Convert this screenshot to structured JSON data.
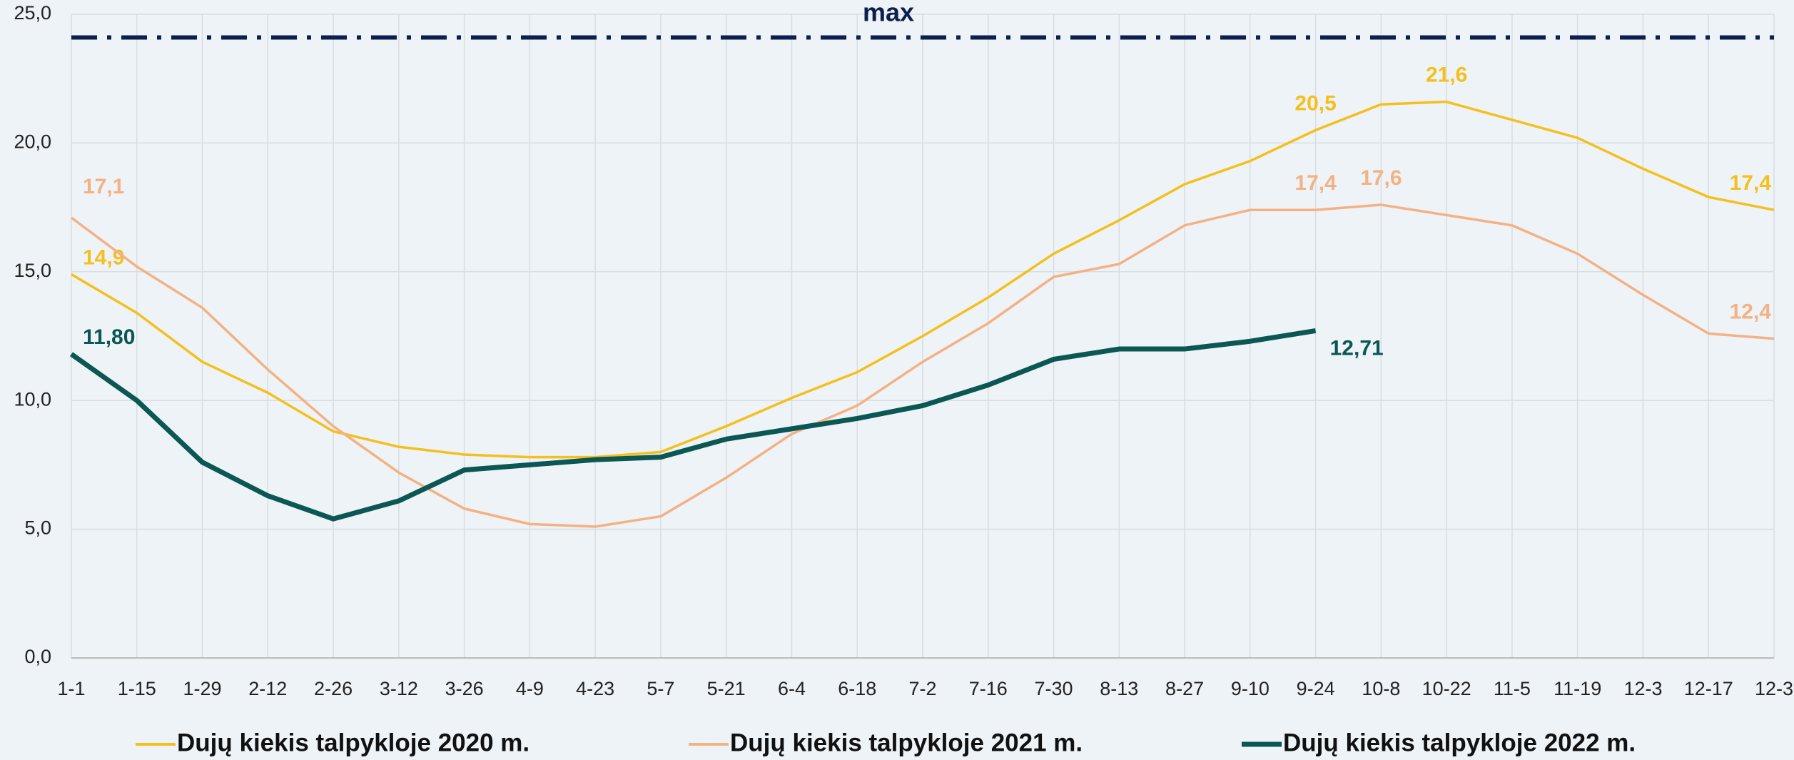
{
  "chart_data": {
    "type": "line",
    "categories": [
      "1-1",
      "1-15",
      "1-29",
      "2-12",
      "2-26",
      "3-12",
      "3-26",
      "4-9",
      "4-23",
      "5-7",
      "5-21",
      "6-4",
      "6-18",
      "7-2",
      "7-16",
      "7-30",
      "8-13",
      "8-27",
      "9-10",
      "9-24",
      "10-8",
      "10-22",
      "11-5",
      "11-19",
      "12-3",
      "12-17",
      "12-3"
    ],
    "ylim": [
      0,
      25
    ],
    "yticks": [
      {
        "value": 0,
        "label": "0,0"
      },
      {
        "value": 5,
        "label": "5,0"
      },
      {
        "value": 10,
        "label": "10,0"
      },
      {
        "value": 15,
        "label": "15,0"
      },
      {
        "value": 20,
        "label": "20,0"
      },
      {
        "value": 25,
        "label": "25,0"
      }
    ],
    "grid": true,
    "max_line": {
      "value": 24.1,
      "label": "max",
      "color": "#0d1f4f"
    },
    "series": [
      {
        "name": "Dujų kiekis talpykloje 2020 m.",
        "color": "#f5bf1c",
        "values": [
          14.9,
          13.4,
          11.5,
          10.3,
          8.8,
          8.2,
          7.9,
          7.8,
          7.8,
          8.0,
          9.0,
          10.1,
          11.1,
          12.5,
          14.0,
          15.7,
          17.0,
          18.4,
          19.3,
          20.5,
          21.5,
          21.6,
          20.9,
          20.2,
          19.0,
          17.9,
          17.4
        ],
        "value_labels": [
          "14,9",
          null,
          null,
          null,
          null,
          null,
          null,
          null,
          null,
          null,
          null,
          null,
          null,
          null,
          null,
          null,
          null,
          null,
          null,
          "20,5",
          null,
          "21,6",
          null,
          null,
          null,
          null,
          "17,4"
        ]
      },
      {
        "name": "Dujų kiekis talpykloje 2021 m.",
        "color": "#f4b183",
        "values": [
          17.1,
          15.2,
          13.6,
          11.2,
          9.0,
          7.2,
          5.8,
          5.2,
          5.1,
          5.5,
          7.0,
          8.7,
          9.8,
          11.5,
          13.0,
          14.8,
          15.3,
          16.8,
          17.4,
          17.4,
          17.6,
          17.2,
          16.8,
          15.7,
          14.1,
          12.6,
          12.4
        ],
        "value_labels": [
          "17,1",
          null,
          null,
          null,
          null,
          null,
          null,
          null,
          null,
          null,
          null,
          null,
          null,
          null,
          null,
          null,
          null,
          null,
          null,
          "17,4",
          "17,6",
          null,
          null,
          null,
          null,
          null,
          "12,4"
        ]
      },
      {
        "name": "Dujų kiekis talpykloje 2022 m.",
        "color": "#0b5753",
        "values": [
          11.8,
          10.0,
          7.6,
          6.3,
          5.4,
          6.1,
          7.3,
          7.5,
          7.7,
          7.8,
          8.5,
          8.9,
          9.3,
          9.8,
          10.6,
          11.6,
          12.0,
          12.0,
          12.3,
          12.71,
          null,
          null,
          null,
          null,
          null,
          null,
          null
        ],
        "value_labels": [
          "11,80",
          null,
          null,
          null,
          null,
          null,
          null,
          null,
          null,
          null,
          null,
          null,
          null,
          null,
          null,
          null,
          null,
          null,
          null,
          "12,71",
          null,
          null,
          null,
          null,
          null,
          null,
          null
        ]
      }
    ]
  }
}
